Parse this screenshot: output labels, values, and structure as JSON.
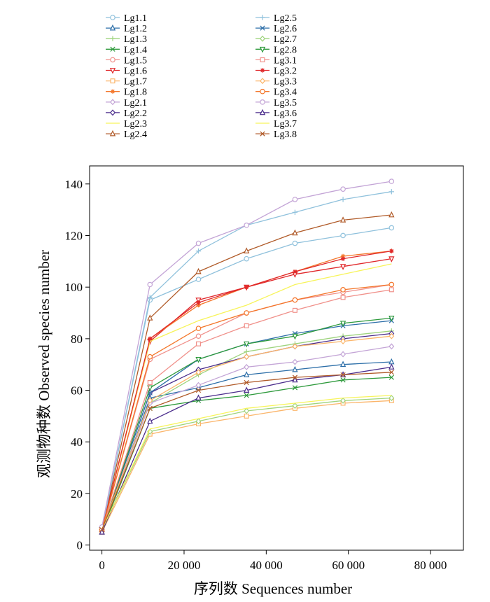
{
  "chart_data": {
    "type": "line",
    "title": "",
    "xlabel": "序列数 Sequences number",
    "ylabel": "观测物种数 Observed species number",
    "xlim": [
      -3000,
      88000
    ],
    "ylim": [
      -2,
      147
    ],
    "xticks": [
      0,
      20000,
      40000,
      60000,
      80000
    ],
    "xtick_labels": [
      "0",
      "20 000",
      "40 000",
      "60 000",
      "80 000"
    ],
    "yticks": [
      0,
      20,
      40,
      60,
      80,
      100,
      120,
      140
    ],
    "ytick_labels": [
      "0",
      "20",
      "40",
      "60",
      "80",
      "100",
      "120",
      "140"
    ],
    "grid": false,
    "legend_position": "top",
    "x": [
      0,
      11700,
      23500,
      35200,
      47000,
      58700,
      70500
    ],
    "series": [
      {
        "name": "Lg1.1",
        "color": "#8fc1dc",
        "marker": "circle",
        "values": [
          6,
          95,
          103,
          111,
          117,
          120,
          123
        ]
      },
      {
        "name": "Lg1.2",
        "color": "#2c6ea8",
        "marker": "triangle",
        "values": [
          5,
          57,
          61,
          66,
          68,
          70,
          71
        ]
      },
      {
        "name": "Lg1.3",
        "color": "#9fd47f",
        "marker": "plus",
        "values": [
          6,
          55,
          66,
          75,
          78,
          81,
          83
        ]
      },
      {
        "name": "Lg1.4",
        "color": "#2e9a3c",
        "marker": "x",
        "values": [
          5,
          53,
          56,
          58,
          61,
          64,
          65
        ]
      },
      {
        "name": "Lg1.5",
        "color": "#f0908a",
        "marker": "circle",
        "values": [
          6,
          72,
          81,
          90,
          95,
          98,
          101
        ]
      },
      {
        "name": "Lg1.6",
        "color": "#e0272a",
        "marker": "triangle-down",
        "values": [
          6,
          79,
          95,
          100,
          105,
          108,
          111
        ]
      },
      {
        "name": "Lg1.7",
        "color": "#fbb56a",
        "marker": "square",
        "values": [
          5,
          43,
          47,
          50,
          53,
          55,
          56
        ]
      },
      {
        "name": "Lg1.8",
        "color": "#f4762a",
        "marker": "asterisk",
        "values": [
          6,
          80,
          93,
          100,
          106,
          112,
          114
        ]
      },
      {
        "name": "Lg2.1",
        "color": "#c3a4d6",
        "marker": "diamond",
        "values": [
          6,
          55,
          62,
          69,
          71,
          74,
          77
        ]
      },
      {
        "name": "Lg2.2",
        "color": "#4b2d8c",
        "marker": "diamond",
        "values": [
          6,
          59,
          68,
          73,
          77,
          80,
          82
        ]
      },
      {
        "name": "Lg2.3",
        "color": "#f7f45a",
        "marker": "none",
        "values": [
          6,
          79,
          87,
          93,
          101,
          105,
          109
        ]
      },
      {
        "name": "Lg2.4",
        "color": "#b05a28",
        "marker": "triangle",
        "values": [
          6,
          88,
          106,
          114,
          121,
          126,
          128
        ]
      },
      {
        "name": "Lg2.5",
        "color": "#8fc1dc",
        "marker": "plus",
        "values": [
          6,
          96,
          114,
          124,
          129,
          134,
          137
        ]
      },
      {
        "name": "Lg2.6",
        "color": "#2c6ea8",
        "marker": "x",
        "values": [
          6,
          59,
          72,
          78,
          82,
          85,
          87
        ]
      },
      {
        "name": "Lg2.7",
        "color": "#9fd47f",
        "marker": "diamond",
        "values": [
          6,
          44,
          48,
          52,
          54,
          56,
          57
        ]
      },
      {
        "name": "Lg2.8",
        "color": "#2e9a3c",
        "marker": "triangle-down",
        "values": [
          6,
          61,
          72,
          78,
          81,
          86,
          88
        ]
      },
      {
        "name": "Lg3.1",
        "color": "#f0908a",
        "marker": "square",
        "values": [
          6,
          63,
          78,
          85,
          91,
          96,
          99
        ]
      },
      {
        "name": "Lg3.2",
        "color": "#e0272a",
        "marker": "asterisk",
        "values": [
          6,
          80,
          94,
          100,
          106,
          111,
          114
        ]
      },
      {
        "name": "Lg3.3",
        "color": "#fbb56a",
        "marker": "diamond",
        "values": [
          6,
          56,
          67,
          73,
          77,
          79,
          81
        ]
      },
      {
        "name": "Lg3.4",
        "color": "#f4762a",
        "marker": "circle",
        "values": [
          6,
          73,
          84,
          90,
          95,
          99,
          101
        ]
      },
      {
        "name": "Lg3.5",
        "color": "#c3a4d6",
        "marker": "circle",
        "values": [
          7,
          101,
          117,
          124,
          134,
          138,
          141
        ]
      },
      {
        "name": "Lg3.6",
        "color": "#4b2d8c",
        "marker": "triangle",
        "values": [
          5,
          48,
          57,
          60,
          64,
          66,
          69
        ]
      },
      {
        "name": "Lg3.7",
        "color": "#f7f45a",
        "marker": "none",
        "values": [
          6,
          45,
          49,
          53,
          55,
          57,
          58
        ]
      },
      {
        "name": "Lg3.8",
        "color": "#b05a28",
        "marker": "x",
        "values": [
          6,
          53,
          60,
          63,
          65,
          66,
          67
        ]
      }
    ]
  }
}
